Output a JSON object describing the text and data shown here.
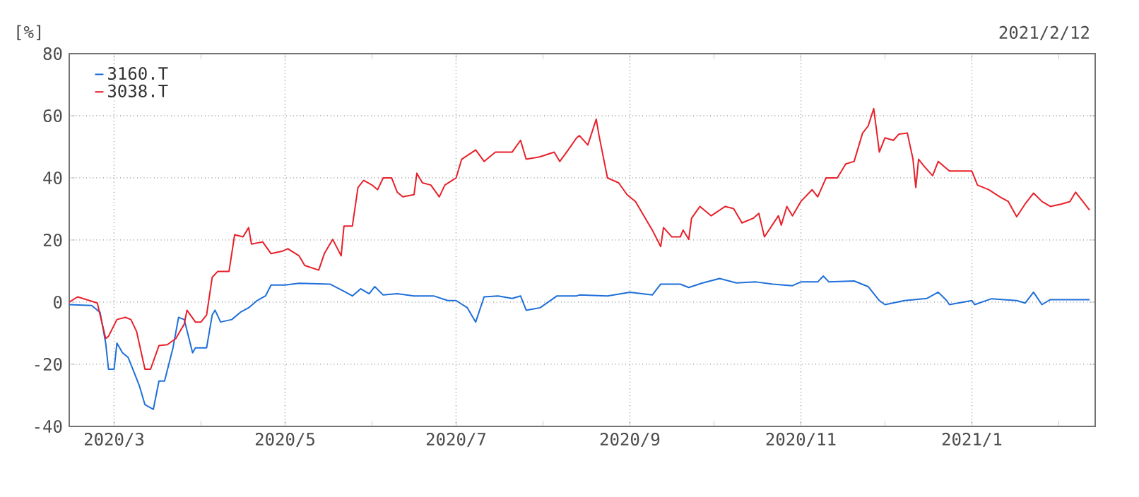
{
  "chart_data": {
    "type": "line",
    "annotations": [
      "[%]",
      "2021/2/12"
    ],
    "xlim": [
      "2020-02-14",
      "2021-02-14"
    ],
    "xticks": [
      {
        "value": "2020-03-01",
        "label": "2020/3"
      },
      {
        "value": "2020-04-01",
        "label": null
      },
      {
        "value": "2020-05-01",
        "label": "2020/5"
      },
      {
        "value": "2020-06-01",
        "label": null
      },
      {
        "value": "2020-07-01",
        "label": "2020/7"
      },
      {
        "value": "2020-08-01",
        "label": null
      },
      {
        "value": "2020-09-01",
        "label": "2020/9"
      },
      {
        "value": "2020-10-01",
        "label": null
      },
      {
        "value": "2020-11-01",
        "label": "2020/11"
      },
      {
        "value": "2020-12-01",
        "label": null
      },
      {
        "value": "2021-01-01",
        "label": "2021/1"
      },
      {
        "value": "2021-02-01",
        "label": null
      }
    ],
    "ylim": [
      -40,
      80
    ],
    "yticks": [
      -40,
      -20,
      0,
      20,
      40,
      60,
      80
    ],
    "grid": true,
    "legend": "top left",
    "marker": "none",
    "line_style": "solid",
    "series": [
      {
        "name": "3160.T",
        "color": "#1e6fd9",
        "x": [
          "2020-02-14",
          "2020-02-22",
          "2020-02-25",
          "2020-02-27",
          "2020-02-28",
          "2020-03-01",
          "2020-03-02",
          "2020-03-04",
          "2020-03-06",
          "2020-03-08",
          "2020-03-10",
          "2020-03-12",
          "2020-03-15",
          "2020-03-17",
          "2020-03-19",
          "2020-03-22",
          "2020-03-24",
          "2020-03-26",
          "2020-03-29",
          "2020-03-30",
          "2020-04-03",
          "2020-04-05",
          "2020-04-06",
          "2020-04-08",
          "2020-04-12",
          "2020-04-15",
          "2020-04-18",
          "2020-04-21",
          "2020-04-24",
          "2020-04-26",
          "2020-05-01",
          "2020-05-06",
          "2020-05-17",
          "2020-05-22",
          "2020-05-25",
          "2020-05-28",
          "2020-05-31",
          "2020-06-02",
          "2020-06-05",
          "2020-06-10",
          "2020-06-16",
          "2020-06-23",
          "2020-06-28",
          "2020-07-01",
          "2020-07-05",
          "2020-07-08",
          "2020-07-11",
          "2020-07-16",
          "2020-07-21",
          "2020-07-24",
          "2020-07-26",
          "2020-07-31",
          "2020-08-06",
          "2020-08-13",
          "2020-08-14",
          "2020-08-24",
          "2020-09-01",
          "2020-09-09",
          "2020-09-12",
          "2020-09-19",
          "2020-09-22",
          "2020-09-27",
          "2020-10-03",
          "2020-10-09",
          "2020-10-16",
          "2020-10-22",
          "2020-10-29",
          "2020-11-01",
          "2020-11-07",
          "2020-11-09",
          "2020-11-11",
          "2020-11-20",
          "2020-11-25",
          "2020-11-29",
          "2020-12-01",
          "2020-12-08",
          "2020-12-16",
          "2020-12-20",
          "2020-12-23",
          "2020-12-24",
          "2021-01-01",
          "2021-01-02",
          "2021-01-08",
          "2021-01-17",
          "2021-01-20",
          "2021-01-23",
          "2021-01-26",
          "2021-01-29",
          "2021-02-12"
        ],
        "values": [
          -0.8,
          -1.1,
          -3.3,
          -13.2,
          -21.6,
          -21.6,
          -13.2,
          -16.3,
          -17.8,
          -22.3,
          -26.9,
          -33,
          -34.5,
          -25.4,
          -25.4,
          -14.7,
          -4.9,
          -5.6,
          -16.3,
          -14.7,
          -14.7,
          -4.1,
          -2.6,
          -6.4,
          -5.6,
          -3.3,
          -1.8,
          0.5,
          2,
          5.5,
          5.5,
          6.1,
          5.8,
          3.5,
          2,
          4.3,
          2.7,
          5,
          2.3,
          2.7,
          2,
          2,
          0.5,
          0.5,
          -1.8,
          -6.4,
          1.7,
          2,
          1.2,
          2,
          -2.6,
          -1.8,
          2,
          2,
          2.3,
          2,
          3.2,
          2.3,
          5.8,
          5.8,
          4.7,
          6.2,
          7.6,
          6.2,
          6.5,
          5.8,
          5.3,
          6.5,
          6.5,
          8.4,
          6.5,
          6.8,
          5,
          0.5,
          -0.8,
          0.5,
          1.2,
          3.2,
          0.5,
          -0.8,
          0.5,
          -0.8,
          1.1,
          0.5,
          -0.3,
          3.2,
          -0.8,
          0.8,
          0.8
        ]
      },
      {
        "name": "3038.T",
        "color": "#e8202a",
        "x": [
          "2020-02-14",
          "2020-02-17",
          "2020-02-24",
          "2020-02-27",
          "2020-02-28",
          "2020-03-02",
          "2020-03-05",
          "2020-03-07",
          "2020-03-09",
          "2020-03-12",
          "2020-03-14",
          "2020-03-17",
          "2020-03-20",
          "2020-03-23",
          "2020-03-26",
          "2020-03-27",
          "2020-03-30",
          "2020-04-01",
          "2020-04-03",
          "2020-04-05",
          "2020-04-07",
          "2020-04-11",
          "2020-04-13",
          "2020-04-16",
          "2020-04-18",
          "2020-04-19",
          "2020-04-23",
          "2020-04-26",
          "2020-04-30",
          "2020-05-02",
          "2020-05-06",
          "2020-05-08",
          "2020-05-13",
          "2020-05-15",
          "2020-05-18",
          "2020-05-21",
          "2020-05-22",
          "2020-05-25",
          "2020-05-27",
          "2020-05-29",
          "2020-06-01",
          "2020-06-03",
          "2020-06-05",
          "2020-06-08",
          "2020-06-10",
          "2020-06-12",
          "2020-06-16",
          "2020-06-17",
          "2020-06-19",
          "2020-06-22",
          "2020-06-25",
          "2020-06-27",
          "2020-07-01",
          "2020-07-03",
          "2020-07-08",
          "2020-07-11",
          "2020-07-15",
          "2020-07-21",
          "2020-07-24",
          "2020-07-26",
          "2020-07-31",
          "2020-08-05",
          "2020-08-07",
          "2020-08-10",
          "2020-08-13",
          "2020-08-14",
          "2020-08-17",
          "2020-08-20",
          "2020-08-21",
          "2020-08-24",
          "2020-08-28",
          "2020-08-31",
          "2020-09-03",
          "2020-09-06",
          "2020-09-09",
          "2020-09-12",
          "2020-09-13",
          "2020-09-16",
          "2020-09-19",
          "2020-09-20",
          "2020-09-22",
          "2020-09-23",
          "2020-09-26",
          "2020-09-30",
          "2020-10-05",
          "2020-10-08",
          "2020-10-11",
          "2020-10-15",
          "2020-10-17",
          "2020-10-19",
          "2020-10-24",
          "2020-10-25",
          "2020-10-27",
          "2020-10-29",
          "2020-11-01",
          "2020-11-05",
          "2020-11-07",
          "2020-11-10",
          "2020-11-14",
          "2020-11-17",
          "2020-11-20",
          "2020-11-23",
          "2020-11-25",
          "2020-11-27",
          "2020-11-29",
          "2020-12-01",
          "2020-12-04",
          "2020-12-06",
          "2020-12-09",
          "2020-12-11",
          "2020-12-12",
          "2020-12-13",
          "2020-12-15",
          "2020-12-18",
          "2020-12-20",
          "2020-12-24",
          "2021-01-01",
          "2021-01-03",
          "2021-01-07",
          "2021-01-11",
          "2021-01-14",
          "2021-01-17",
          "2021-01-20",
          "2021-01-23",
          "2021-01-26",
          "2021-01-29",
          "2021-02-02",
          "2021-02-05",
          "2021-02-07",
          "2021-02-12"
        ],
        "values": [
          0,
          1.7,
          -0.3,
          -11.7,
          -11,
          -5.6,
          -4.9,
          -5.6,
          -9.4,
          -21.6,
          -21.6,
          -14,
          -13.7,
          -11.7,
          -7.1,
          -2.6,
          -6.4,
          -6.4,
          -4.1,
          8,
          9.9,
          9.9,
          21.7,
          21,
          24,
          18.7,
          19.4,
          15.6,
          16.4,
          17.2,
          14.9,
          11.8,
          10.3,
          15.6,
          20.2,
          14.9,
          24.5,
          24.5,
          36.9,
          39.2,
          37.7,
          36.2,
          40,
          40,
          35.4,
          33.9,
          34.6,
          41.5,
          38.4,
          37.7,
          33.9,
          37.7,
          40,
          46,
          49,
          45.3,
          48.3,
          48.3,
          52.1,
          46,
          46.8,
          48.3,
          45.3,
          49,
          52.9,
          53.6,
          50.6,
          58.9,
          53.6,
          40,
          38.4,
          34.6,
          32.4,
          27.8,
          23.2,
          17.9,
          24,
          21,
          21,
          23.2,
          20.2,
          27,
          30.8,
          27.8,
          30.8,
          30.1,
          25.5,
          27,
          28.6,
          21,
          27.8,
          24.8,
          30.8,
          27.8,
          32.4,
          36.2,
          33.9,
          40,
          40,
          44.5,
          45.3,
          54.4,
          56.7,
          62.3,
          48.3,
          52.9,
          52.1,
          54.1,
          54.4,
          46,
          36.9,
          46,
          43.7,
          40.7,
          45.3,
          42.2,
          42.2,
          37.7,
          36.2,
          33.9,
          32.4,
          27.5,
          31.6,
          35.1,
          32.4,
          30.8,
          31.6,
          32.4,
          35.4,
          29.6
        ]
      }
    ]
  }
}
